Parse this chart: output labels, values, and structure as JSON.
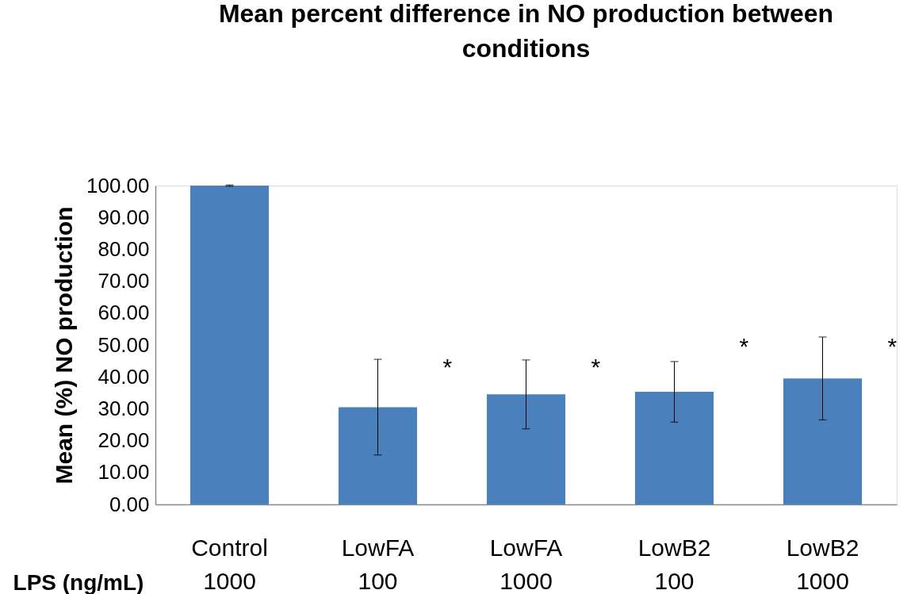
{
  "chart_data": {
    "type": "bar",
    "title": "Mean percent difference in NO production between conditions",
    "ylabel": "Mean (%) NO production",
    "categories": [
      "Control\n1000",
      "LowFA\n100",
      "LowFA\n1000",
      "LowB2\n100",
      "LowB2\n1000"
    ],
    "values": [
      100,
      30.5,
      34.5,
      35.3,
      39.5
    ],
    "errors": [
      0.2,
      15,
      10.8,
      9.5,
      13
    ],
    "color": "#4a81bd",
    "ylim": [
      0,
      100
    ],
    "yticks": [
      {
        "value": 0,
        "label": "0.00"
      },
      {
        "value": 10,
        "label": "10.00"
      },
      {
        "value": 20,
        "label": "20.00"
      },
      {
        "value": 30,
        "label": "30.00"
      },
      {
        "value": 40,
        "label": "40.00"
      },
      {
        "value": 50,
        "label": "50.00"
      },
      {
        "value": 60,
        "label": "60.00"
      },
      {
        "value": 70,
        "label": "70.00"
      },
      {
        "value": 80,
        "label": "80.00"
      },
      {
        "value": 90,
        "label": "90.00"
      },
      {
        "value": 100,
        "label": "100.00"
      }
    ],
    "grid": false,
    "annotations": [
      "LPS (ng/mL)",
      "*",
      "*",
      "*",
      "*"
    ]
  }
}
